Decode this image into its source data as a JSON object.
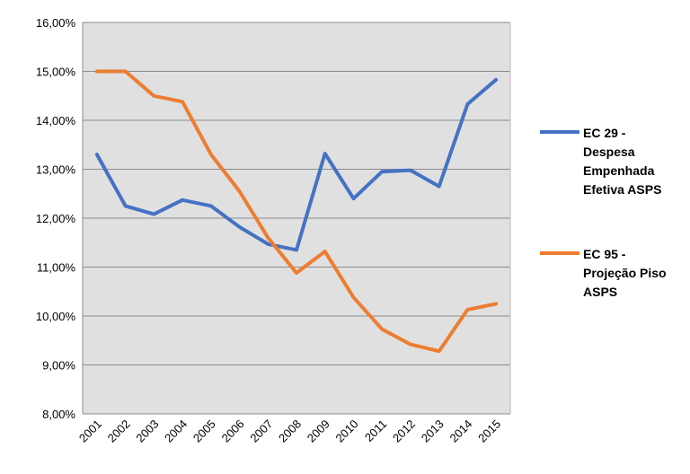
{
  "chart_data": {
    "type": "line",
    "title": "",
    "xlabel": "",
    "ylabel": "",
    "x": [
      "2001",
      "2002",
      "2003",
      "2004",
      "2005",
      "2006",
      "2007",
      "2008",
      "2009",
      "2010",
      "2011",
      "2012",
      "2013",
      "2014",
      "2015"
    ],
    "ylim": [
      8,
      16
    ],
    "yticks": [
      "8,00%",
      "9,00%",
      "10,00%",
      "11,00%",
      "12,00%",
      "13,00%",
      "14,00%",
      "15,00%",
      "16,00%"
    ],
    "grid": "horizontal",
    "plot_background": "#e0e0e0",
    "legend_position": "right",
    "series": [
      {
        "name": "EC 29 - Despesa Empenhada Efetiva ASPS",
        "legend_lines": [
          "EC 29 -",
          "Despesa",
          "Empenhada",
          "Efetiva ASPS"
        ],
        "color": "#4472c4",
        "values": [
          13.3,
          12.25,
          12.08,
          12.37,
          12.25,
          11.82,
          11.47,
          11.35,
          13.32,
          12.4,
          12.95,
          12.98,
          12.65,
          14.33,
          14.83
        ]
      },
      {
        "name": "EC 95 - Projeção Piso ASPS",
        "legend_lines": [
          "EC 95 -",
          "Projeção Piso",
          "ASPS"
        ],
        "color": "#ed7d31",
        "values": [
          15.0,
          15.0,
          14.5,
          14.38,
          13.3,
          12.55,
          11.6,
          10.88,
          11.32,
          10.38,
          9.73,
          9.42,
          9.28,
          10.13,
          10.25
        ]
      }
    ]
  }
}
